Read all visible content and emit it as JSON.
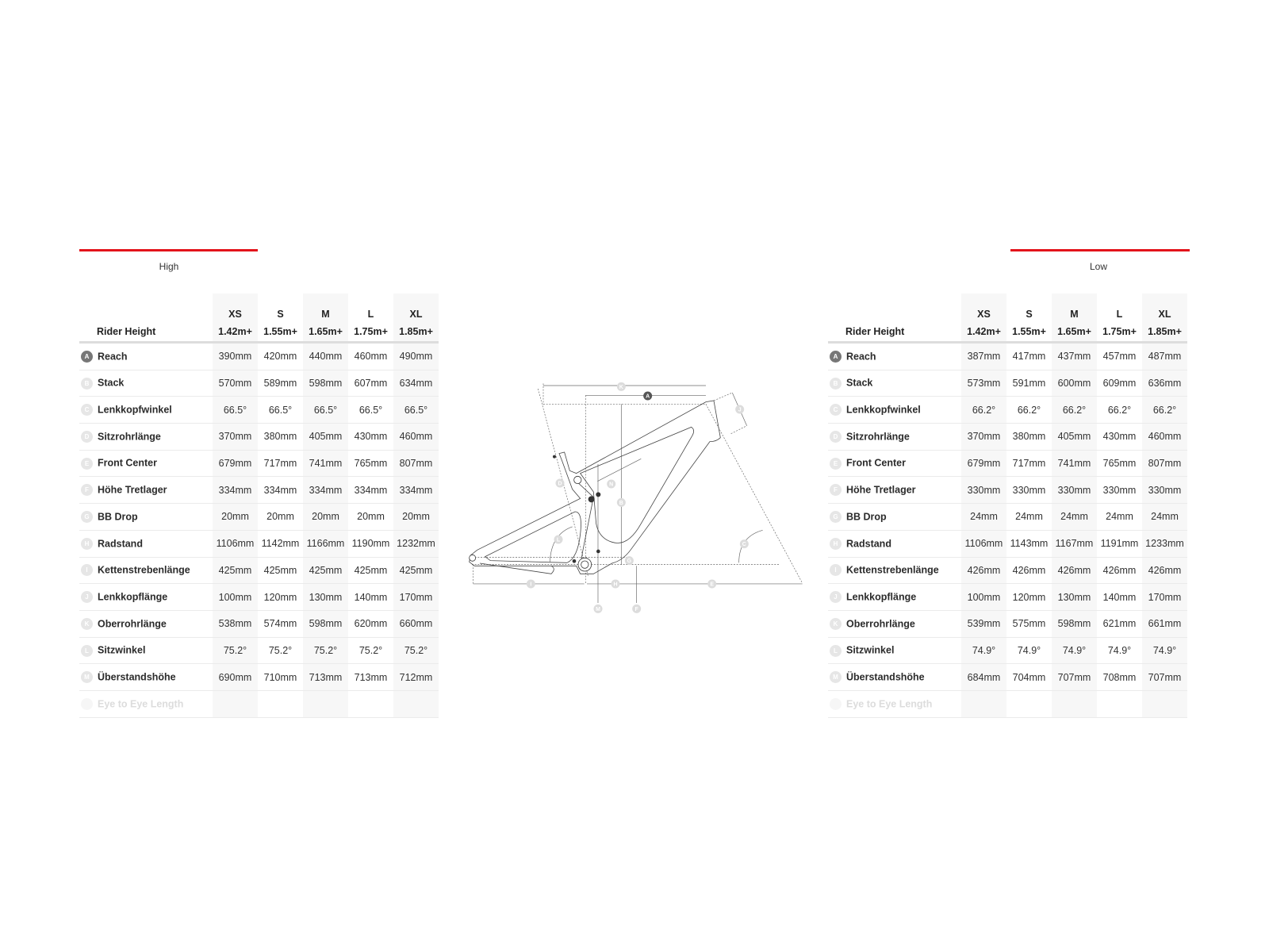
{
  "left": {
    "tab_label": "High",
    "header": {
      "rider_height_label": "Rider Height",
      "sizes": [
        "XS",
        "S",
        "M",
        "L",
        "XL"
      ],
      "heights": [
        "1.42m+",
        "1.55m+",
        "1.65m+",
        "1.75m+",
        "1.85m+"
      ]
    },
    "rows": [
      {
        "key": "A",
        "label": "Reach",
        "values": [
          "390mm",
          "420mm",
          "440mm",
          "460mm",
          "490mm"
        ]
      },
      {
        "key": "B",
        "label": "Stack",
        "values": [
          "570mm",
          "589mm",
          "598mm",
          "607mm",
          "634mm"
        ]
      },
      {
        "key": "C",
        "label": "Lenkkopfwinkel",
        "values": [
          "66.5°",
          "66.5°",
          "66.5°",
          "66.5°",
          "66.5°"
        ]
      },
      {
        "key": "D",
        "label": "Sitzrohrlänge",
        "values": [
          "370mm",
          "380mm",
          "405mm",
          "430mm",
          "460mm"
        ]
      },
      {
        "key": "E",
        "label": "Front Center",
        "values": [
          "679mm",
          "717mm",
          "741mm",
          "765mm",
          "807mm"
        ]
      },
      {
        "key": "F",
        "label": "Höhe Tretlager",
        "values": [
          "334mm",
          "334mm",
          "334mm",
          "334mm",
          "334mm"
        ]
      },
      {
        "key": "G",
        "label": "BB Drop",
        "values": [
          "20mm",
          "20mm",
          "20mm",
          "20mm",
          "20mm"
        ]
      },
      {
        "key": "H",
        "label": "Radstand",
        "values": [
          "1106mm",
          "1142mm",
          "1166mm",
          "1190mm",
          "1232mm"
        ]
      },
      {
        "key": "I",
        "label": "Kettenstrebenlänge",
        "values": [
          "425mm",
          "425mm",
          "425mm",
          "425mm",
          "425mm"
        ]
      },
      {
        "key": "J",
        "label": "Lenkkopflänge",
        "values": [
          "100mm",
          "120mm",
          "130mm",
          "140mm",
          "170mm"
        ]
      },
      {
        "key": "K",
        "label": "Oberrohrlänge",
        "values": [
          "538mm",
          "574mm",
          "598mm",
          "620mm",
          "660mm"
        ]
      },
      {
        "key": "L",
        "label": "Sitzwinkel",
        "values": [
          "75.2°",
          "75.2°",
          "75.2°",
          "75.2°",
          "75.2°"
        ]
      },
      {
        "key": "M",
        "label": "Überstandshöhe",
        "values": [
          "690mm",
          "710mm",
          "713mm",
          "713mm",
          "712mm"
        ]
      },
      {
        "key": "N",
        "label": "Eye to Eye Length",
        "values": [
          "",
          "",
          "",
          "",
          ""
        ],
        "faded": true
      }
    ]
  },
  "right": {
    "tab_label": "Low",
    "header": {
      "rider_height_label": "Rider Height",
      "sizes": [
        "XS",
        "S",
        "M",
        "L",
        "XL"
      ],
      "heights": [
        "1.42m+",
        "1.55m+",
        "1.65m+",
        "1.75m+",
        "1.85m+"
      ]
    },
    "rows": [
      {
        "key": "A",
        "label": "Reach",
        "values": [
          "387mm",
          "417mm",
          "437mm",
          "457mm",
          "487mm"
        ]
      },
      {
        "key": "B",
        "label": "Stack",
        "values": [
          "573mm",
          "591mm",
          "600mm",
          "609mm",
          "636mm"
        ]
      },
      {
        "key": "C",
        "label": "Lenkkopfwinkel",
        "values": [
          "66.2°",
          "66.2°",
          "66.2°",
          "66.2°",
          "66.2°"
        ]
      },
      {
        "key": "D",
        "label": "Sitzrohrlänge",
        "values": [
          "370mm",
          "380mm",
          "405mm",
          "430mm",
          "460mm"
        ]
      },
      {
        "key": "E",
        "label": "Front Center",
        "values": [
          "679mm",
          "717mm",
          "741mm",
          "765mm",
          "807mm"
        ]
      },
      {
        "key": "F",
        "label": "Höhe Tretlager",
        "values": [
          "330mm",
          "330mm",
          "330mm",
          "330mm",
          "330mm"
        ]
      },
      {
        "key": "G",
        "label": "BB Drop",
        "values": [
          "24mm",
          "24mm",
          "24mm",
          "24mm",
          "24mm"
        ]
      },
      {
        "key": "H",
        "label": "Radstand",
        "values": [
          "1106mm",
          "1143mm",
          "1167mm",
          "1191mm",
          "1233mm"
        ]
      },
      {
        "key": "I",
        "label": "Kettenstrebenlänge",
        "values": [
          "426mm",
          "426mm",
          "426mm",
          "426mm",
          "426mm"
        ]
      },
      {
        "key": "J",
        "label": "Lenkkopflänge",
        "values": [
          "100mm",
          "120mm",
          "130mm",
          "140mm",
          "170mm"
        ]
      },
      {
        "key": "K",
        "label": "Oberrohrlänge",
        "values": [
          "539mm",
          "575mm",
          "598mm",
          "621mm",
          "661mm"
        ]
      },
      {
        "key": "L",
        "label": "Sitzwinkel",
        "values": [
          "74.9°",
          "74.9°",
          "74.9°",
          "74.9°",
          "74.9°"
        ]
      },
      {
        "key": "M",
        "label": "Überstandshöhe",
        "values": [
          "684mm",
          "704mm",
          "707mm",
          "708mm",
          "707mm"
        ]
      },
      {
        "key": "N",
        "label": "Eye to Eye Length",
        "values": [
          "",
          "",
          "",
          "",
          ""
        ],
        "faded": true
      }
    ]
  },
  "diagram": {
    "labels": {
      "A": "A",
      "B": "B",
      "C": "C",
      "D": "D",
      "E": "E",
      "F": "F",
      "G": "G",
      "H": "H",
      "I": "I",
      "J": "J",
      "K": "K",
      "L": "L",
      "M": "M",
      "N": "N"
    }
  },
  "colors": {
    "accent": "#e3131b",
    "key_active": "#777777",
    "key_inactive": "#e6e6e6",
    "column_shade": "#f7f7f7"
  }
}
